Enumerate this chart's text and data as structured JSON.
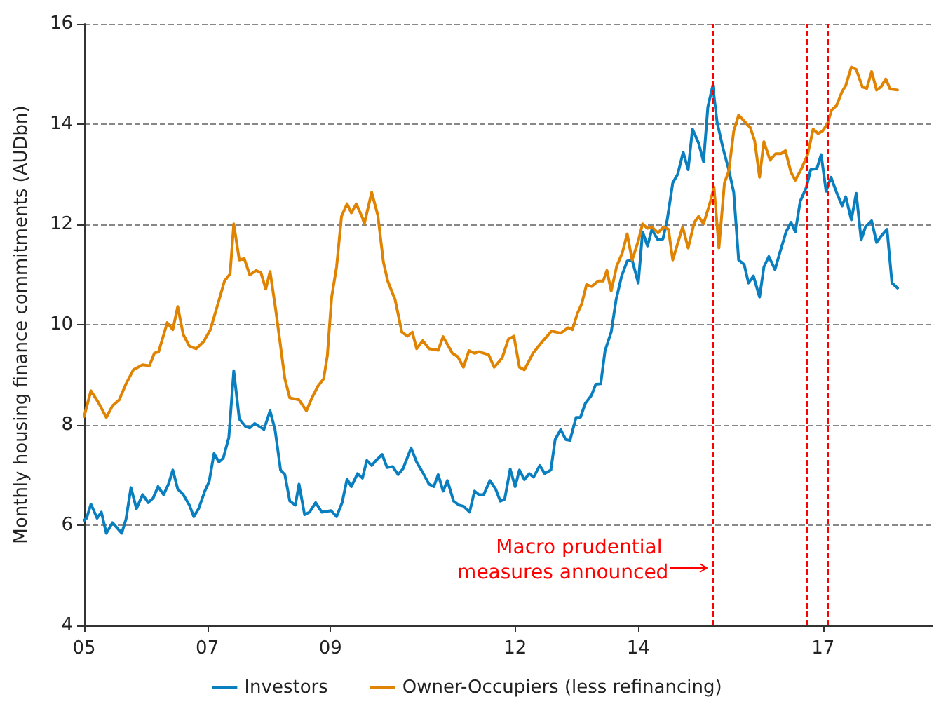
{
  "chart_data": {
    "type": "line",
    "ylabel": "Monthly housing finance commitments (AUDbn)",
    "xlim": [
      2005,
      2018.78
    ],
    "xticks": [
      {
        "value": 2005,
        "label": "05"
      },
      {
        "value": 2007,
        "label": "07"
      },
      {
        "value": 2009,
        "label": "09"
      },
      {
        "value": 2012,
        "label": "12"
      },
      {
        "value": 2014,
        "label": "14"
      },
      {
        "value": 2017,
        "label": "17"
      }
    ],
    "ylim": [
      4,
      16
    ],
    "yticks": [
      4,
      6,
      8,
      10,
      12,
      14,
      16
    ],
    "grid": "y",
    "legend": "bottom",
    "marker": "none",
    "line_style": "solid",
    "series": [
      {
        "name": "Investors",
        "color": "#0a7fc0",
        "x": [
          2005,
          2005.04,
          2005.11,
          2005.21,
          2005.28,
          2005.36,
          2005.46,
          2005.61,
          2005.68,
          2005.76,
          2005.85,
          2005.95,
          2006.04,
          2006.12,
          2006.2,
          2006.29,
          2006.37,
          2006.44,
          2006.52,
          2006.61,
          2006.71,
          2006.78,
          2006.86,
          2006.96,
          2007.03,
          2007.11,
          2007.19,
          2007.26,
          2007.35,
          2007.43,
          2007.52,
          2007.62,
          2007.69,
          2007.77,
          2007.92,
          2008.02,
          2008.1,
          2008.19,
          2008.26,
          2008.34,
          2008.43,
          2008.49,
          2008.58,
          2008.66,
          2008.76,
          2008.86,
          2009.01,
          2009.1,
          2009.19,
          2009.27,
          2009.34,
          2009.44,
          2009.52,
          2009.59,
          2009.67,
          2009.74,
          2009.84,
          2009.92,
          2010.01,
          2010.1,
          2010.18,
          2010.31,
          2010.4,
          2010.5,
          2010.6,
          2010.68,
          2010.75,
          2010.83,
          2010.9,
          2011,
          2011.09,
          2011.16,
          2011.26,
          2011.34,
          2011.41,
          2011.49,
          2011.59,
          2011.68,
          2011.76,
          2011.83,
          2011.92,
          2012,
          2012.07,
          2012.15,
          2012.23,
          2012.3,
          2012.4,
          2012.48,
          2012.58,
          2012.65,
          2012.74,
          2012.82,
          2012.89,
          2012.99,
          2013.06,
          2013.14,
          2013.24,
          2013.31,
          2013.39,
          2013.46,
          2013.56,
          2013.64,
          2013.73,
          2013.82,
          2013.9,
          2014,
          2014.07,
          2014.15,
          2014.22,
          2014.32,
          2014.4,
          2014.47,
          2014.56,
          2014.64,
          2014.73,
          2014.81,
          2014.88,
          2014.98,
          2015.06,
          2015.13,
          2015.21,
          2015.28,
          2015.38,
          2015.47,
          2015.55,
          2015.63,
          2015.72,
          2015.79,
          2015.87,
          2015.97,
          2016.04,
          2016.12,
          2016.22,
          2016.31,
          2016.4,
          2016.48,
          2016.55,
          2016.63,
          2016.73,
          2016.8,
          2016.9,
          2016.97,
          2017.05,
          2017.13,
          2017.22,
          2017.31,
          2017.37,
          2017.46,
          2017.54,
          2017.62,
          2017.69,
          2017.79,
          2017.87,
          2017.94,
          2018.04,
          2018.12,
          2018.21
        ],
        "values": [
          6.1,
          6.14,
          6.42,
          6.14,
          6.26,
          5.84,
          6.05,
          5.84,
          6.12,
          6.75,
          6.33,
          6.61,
          6.45,
          6.54,
          6.77,
          6.61,
          6.82,
          7.1,
          6.72,
          6.61,
          6.4,
          6.17,
          6.33,
          6.68,
          6.87,
          7.43,
          7.26,
          7.34,
          7.75,
          9.08,
          8.12,
          7.97,
          7.94,
          8.03,
          7.91,
          8.28,
          7.91,
          7.1,
          7.01,
          6.48,
          6.4,
          6.82,
          6.21,
          6.26,
          6.45,
          6.26,
          6.29,
          6.17,
          6.45,
          6.92,
          6.77,
          7.03,
          6.94,
          7.29,
          7.19,
          7.29,
          7.41,
          7.15,
          7.17,
          7.01,
          7.13,
          7.54,
          7.26,
          7.05,
          6.82,
          6.77,
          7.01,
          6.68,
          6.89,
          6.48,
          6.4,
          6.38,
          6.26,
          6.68,
          6.61,
          6.61,
          6.89,
          6.73,
          6.48,
          6.52,
          7.12,
          6.77,
          7.1,
          6.91,
          7.03,
          6.96,
          7.19,
          7.03,
          7.1,
          7.71,
          7.91,
          7.71,
          7.69,
          8.15,
          8.15,
          8.43,
          8.59,
          8.81,
          8.82,
          9.48,
          9.85,
          10.5,
          10.97,
          11.27,
          11.29,
          10.83,
          11.85,
          11.57,
          11.9,
          11.69,
          11.71,
          12.09,
          12.83,
          13,
          13.44,
          13.09,
          13.9,
          13.62,
          13.25,
          14.34,
          14.77,
          14.04,
          13.5,
          13.09,
          12.64,
          11.29,
          11.2,
          10.83,
          10.97,
          10.55,
          11.15,
          11.36,
          11.1,
          11.48,
          11.85,
          12.04,
          11.85,
          12.46,
          12.74,
          13.09,
          13.11,
          13.39,
          12.66,
          12.94,
          12.64,
          12.37,
          12.55,
          12.09,
          12.62,
          11.69,
          11.95,
          12.07,
          11.64,
          11.76,
          11.9,
          10.83,
          10.73
        ]
      },
      {
        "name": "Owner-Occupiers (less refinancing)",
        "color": "#e08300",
        "x": [
          2005,
          2005.11,
          2005.23,
          2005.36,
          2005.46,
          2005.57,
          2005.68,
          2005.8,
          2005.95,
          2006.06,
          2006.14,
          2006.21,
          2006.35,
          2006.44,
          2006.52,
          2006.61,
          2006.71,
          2006.82,
          2006.94,
          2007.05,
          2007.16,
          2007.28,
          2007.37,
          2007.43,
          2007.52,
          2007.6,
          2007.69,
          2007.79,
          2007.87,
          2007.95,
          2008.02,
          2008.11,
          2008.19,
          2008.26,
          2008.34,
          2008.49,
          2008.61,
          2008.7,
          2008.8,
          2008.89,
          2008.95,
          2009.02,
          2009.1,
          2009.18,
          2009.27,
          2009.34,
          2009.42,
          2009.52,
          2009.55,
          2009.67,
          2009.77,
          2009.86,
          2009.93,
          2010.05,
          2010.16,
          2010.25,
          2010.33,
          2010.4,
          2010.5,
          2010.6,
          2010.75,
          2010.83,
          2010.98,
          2011.07,
          2011.16,
          2011.25,
          2011.34,
          2011.41,
          2011.57,
          2011.66,
          2011.79,
          2011.89,
          2011.98,
          2012.07,
          2012.15,
          2012.29,
          2012.44,
          2012.59,
          2012.74,
          2012.86,
          2012.93,
          2013.01,
          2013.08,
          2013.16,
          2013.24,
          2013.35,
          2013.43,
          2013.49,
          2013.56,
          2013.65,
          2013.74,
          2013.82,
          2013.9,
          2014,
          2014.07,
          2014.15,
          2014.22,
          2014.32,
          2014.41,
          2014.49,
          2014.56,
          2014.72,
          2014.81,
          2014.91,
          2014.98,
          2015.06,
          2015.16,
          2015.23,
          2015.31,
          2015.4,
          2015.47,
          2015.55,
          2015.63,
          2015.72,
          2015.82,
          2015.89,
          2015.97,
          2016.04,
          2016.14,
          2016.23,
          2016.32,
          2016.39,
          2016.48,
          2016.55,
          2016.65,
          2016.75,
          2016.84,
          2016.92,
          2016.99,
          2017.07,
          2017.14,
          2017.22,
          2017.31,
          2017.37,
          2017.46,
          2017.54,
          2017.64,
          2017.71,
          2017.79,
          2017.87,
          2017.94,
          2018.02,
          2018.09,
          2018.21
        ],
        "values": [
          8.17,
          8.68,
          8.45,
          8.15,
          8.38,
          8.5,
          8.82,
          9.1,
          9.2,
          9.18,
          9.43,
          9.46,
          10.04,
          9.9,
          10.36,
          9.8,
          9.57,
          9.52,
          9.66,
          9.9,
          10.36,
          10.87,
          11.01,
          12.01,
          11.29,
          11.32,
          10.99,
          11.08,
          11.04,
          10.71,
          11.06,
          10.31,
          9.57,
          8.92,
          8.54,
          8.5,
          8.28,
          8.54,
          8.78,
          8.92,
          9.38,
          10.55,
          11.15,
          12.16,
          12.41,
          12.23,
          12.41,
          12.13,
          12.01,
          12.64,
          12.18,
          11.25,
          10.87,
          10.5,
          9.85,
          9.77,
          9.85,
          9.52,
          9.68,
          9.52,
          9.49,
          9.76,
          9.43,
          9.36,
          9.15,
          9.48,
          9.43,
          9.46,
          9.4,
          9.15,
          9.34,
          9.71,
          9.77,
          9.15,
          9.1,
          9.43,
          9.66,
          9.87,
          9.83,
          9.94,
          9.9,
          10.22,
          10.41,
          10.8,
          10.76,
          10.87,
          10.87,
          11.08,
          10.67,
          11.17,
          11.43,
          11.81,
          11.29,
          11.67,
          12.01,
          11.92,
          11.95,
          11.83,
          11.95,
          11.9,
          11.29,
          11.95,
          11.53,
          12.04,
          12.16,
          12.01,
          12.41,
          12.74,
          11.53,
          12.83,
          13.06,
          13.86,
          14.18,
          14.06,
          13.93,
          13.67,
          12.94,
          13.65,
          13.28,
          13.41,
          13.41,
          13.47,
          13.04,
          12.88,
          13.11,
          13.39,
          13.9,
          13.81,
          13.86,
          14,
          14.28,
          14.37,
          14.65,
          14.77,
          15.14,
          15.09,
          14.74,
          14.71,
          15.05,
          14.68,
          14.74,
          14.9,
          14.7,
          14.68
        ]
      }
    ],
    "ref_lines": [
      {
        "axis": "x",
        "value": 2015.22,
        "color": "#ff0000",
        "line_style": "dashed"
      },
      {
        "axis": "x",
        "value": 2016.74,
        "color": "#ff0000",
        "line_style": "dashed"
      },
      {
        "axis": "x",
        "value": 2017.08,
        "color": "#ff0000",
        "line_style": "dashed"
      }
    ],
    "annotations": [
      {
        "text": "Macro prudential measures announced",
        "x": 2015.22,
        "y": 5.3
      }
    ]
  }
}
